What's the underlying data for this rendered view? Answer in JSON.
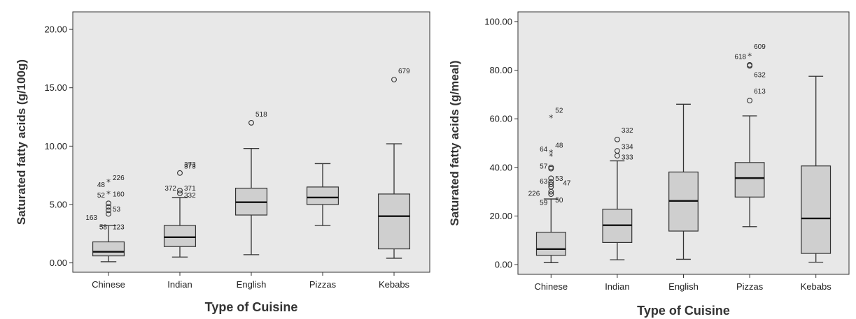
{
  "colors": {
    "plot_bg": "#e8e8e8",
    "box_fill": "#cfcfcf",
    "line": "#333333"
  },
  "chart_data": [
    {
      "type": "box",
      "xlabel": "Type of Cuisine",
      "ylabel": "Saturated fatty acids (g/100g)",
      "ylim": [
        -0.8,
        21.5
      ],
      "yticks": [
        0,
        5,
        10,
        15,
        20
      ],
      "ytick_labels": [
        "0.00",
        "5.00",
        "10.00",
        "15.00",
        "20.00"
      ],
      "grid": false,
      "categories": [
        "Chinese",
        "Indian",
        "English",
        "Pizzas",
        "Kebabs"
      ],
      "boxes": [
        {
          "min": 0.1,
          "q1": 0.6,
          "median": 0.95,
          "q3": 1.8,
          "max": 3.2
        },
        {
          "min": 0.5,
          "q1": 1.4,
          "median": 2.2,
          "q3": 3.2,
          "max": 5.6
        },
        {
          "min": 0.7,
          "q1": 4.1,
          "median": 5.2,
          "q3": 6.4,
          "max": 9.8
        },
        {
          "min": 3.2,
          "q1": 5.0,
          "median": 5.6,
          "q3": 6.5,
          "max": 8.5
        },
        {
          "min": 0.4,
          "q1": 1.2,
          "median": 4.0,
          "q3": 5.9,
          "max": 10.2
        }
      ],
      "outliers": [
        {
          "cat": 0,
          "y": 4.2,
          "mark": "circle",
          "label": ""
        },
        {
          "cat": 0,
          "y": 4.5,
          "mark": "circle",
          "label": ""
        },
        {
          "cat": 0,
          "y": 4.8,
          "mark": "circle",
          "label": ""
        },
        {
          "cat": 0,
          "y": 5.1,
          "mark": "circle",
          "label": ""
        },
        {
          "cat": 0,
          "y": 5.9,
          "mark": "star",
          "label": ""
        },
        {
          "cat": 0,
          "y": 6.9,
          "mark": "star",
          "label": ""
        }
      ],
      "point_labels": [
        {
          "cat": 0,
          "y": 7.3,
          "side": "right",
          "text": "226"
        },
        {
          "cat": 0,
          "y": 6.7,
          "side": "left",
          "text": "48"
        },
        {
          "cat": 0,
          "y": 5.8,
          "side": "left",
          "text": "52"
        },
        {
          "cat": 0,
          "y": 5.9,
          "side": "right",
          "text": "160"
        },
        {
          "cat": 0,
          "y": 4.6,
          "side": "right",
          "text": "53"
        },
        {
          "cat": 0,
          "y": 3.9,
          "side": "far-left",
          "text": "163"
        },
        {
          "cat": 0,
          "y": 3.1,
          "side": "mid-left",
          "text": "58"
        },
        {
          "cat": 0,
          "y": 3.1,
          "side": "right",
          "text": "123"
        },
        {
          "cat": 1,
          "y": 7.7,
          "mark": "circle",
          "label": "373"
        },
        {
          "cat": 1,
          "y": 6.2,
          "mark": "circle",
          "label": ""
        },
        {
          "cat": 1,
          "y": 5.95,
          "mark": "circle",
          "label": ""
        }
      ],
      "extra_labels": [
        {
          "cat": 1,
          "y": 8.3,
          "side": "right",
          "text": "373"
        },
        {
          "cat": 1,
          "y": 6.4,
          "side": "left",
          "text": "372"
        },
        {
          "cat": 1,
          "y": 6.4,
          "side": "right",
          "text": "371"
        },
        {
          "cat": 1,
          "y": 5.8,
          "side": "right",
          "text": "332"
        },
        {
          "cat": 2,
          "y": 12.0,
          "mark": "circle",
          "text": "518"
        },
        {
          "cat": 4,
          "y": 15.7,
          "mark": "circle",
          "text": "679"
        }
      ]
    },
    {
      "type": "box",
      "xlabel": "Type of Cuisine",
      "ylabel": "Saturated fatty acids (g/meal)",
      "ylim": [
        -4,
        104
      ],
      "yticks": [
        0,
        20,
        40,
        60,
        80,
        100
      ],
      "ytick_labels": [
        "0.00",
        "20.00",
        "40.00",
        "60.00",
        "80.00",
        "100.00"
      ],
      "grid": false,
      "categories": [
        "Chinese",
        "Indian",
        "English",
        "Pizzas",
        "Kebabs"
      ],
      "boxes": [
        {
          "min": 0.8,
          "q1": 3.8,
          "median": 6.4,
          "q3": 13.3,
          "max": 27.0
        },
        {
          "min": 2.0,
          "q1": 9.1,
          "median": 16.2,
          "q3": 22.8,
          "max": 42.7
        },
        {
          "min": 2.2,
          "q1": 13.8,
          "median": 26.2,
          "q3": 38.1,
          "max": 66.0
        },
        {
          "min": 15.6,
          "q1": 27.8,
          "median": 35.6,
          "q3": 42.0,
          "max": 61.2
        },
        {
          "min": 1.0,
          "q1": 4.6,
          "median": 19.0,
          "q3": 40.6,
          "max": 77.5
        }
      ],
      "outliers": [
        {
          "cat": 0,
          "y": 29.0,
          "mark": "circle"
        },
        {
          "cat": 0,
          "y": 30.0,
          "mark": "circle"
        },
        {
          "cat": 0,
          "y": 32.0,
          "mark": "circle"
        },
        {
          "cat": 0,
          "y": 33.0,
          "mark": "circle"
        },
        {
          "cat": 0,
          "y": 34.0,
          "mark": "circle"
        },
        {
          "cat": 0,
          "y": 35.5,
          "mark": "circle"
        },
        {
          "cat": 0,
          "y": 39.5,
          "mark": "circle"
        },
        {
          "cat": 0,
          "y": 40.0,
          "mark": "circle"
        },
        {
          "cat": 0,
          "y": 44.5,
          "mark": "star"
        },
        {
          "cat": 0,
          "y": 46.0,
          "mark": "star"
        },
        {
          "cat": 0,
          "y": 60.3,
          "mark": "star"
        },
        {
          "cat": 1,
          "y": 44.8,
          "mark": "circle"
        },
        {
          "cat": 1,
          "y": 46.8,
          "mark": "circle"
        },
        {
          "cat": 1,
          "y": 51.5,
          "mark": "circle"
        },
        {
          "cat": 2,
          "y": 0,
          "mark": "none"
        },
        {
          "cat": 3,
          "y": 67.5,
          "mark": "circle"
        },
        {
          "cat": 3,
          "y": 81.8,
          "mark": "circle"
        },
        {
          "cat": 3,
          "y": 82.2,
          "mark": "circle"
        },
        {
          "cat": 3,
          "y": 85.8,
          "mark": "star"
        }
      ],
      "point_labels": [
        {
          "cat": 0,
          "y": 63.5,
          "side": "right",
          "text": "52"
        },
        {
          "cat": 0,
          "y": 49.2,
          "side": "right",
          "text": "48"
        },
        {
          "cat": 0,
          "y": 47.5,
          "side": "left",
          "text": "64"
        },
        {
          "cat": 0,
          "y": 40.5,
          "side": "left",
          "text": "57"
        },
        {
          "cat": 0,
          "y": 34.4,
          "side": "left",
          "text": "63"
        },
        {
          "cat": 0,
          "y": 35.5,
          "side": "right",
          "text": "53"
        },
        {
          "cat": 0,
          "y": 33.6,
          "side": "far-right",
          "text": "47"
        },
        {
          "cat": 0,
          "y": 29.3,
          "side": "far-left",
          "text": "226"
        },
        {
          "cat": 0,
          "y": 25.6,
          "side": "left",
          "text": "59"
        },
        {
          "cat": 0,
          "y": 26.6,
          "side": "right",
          "text": "50"
        },
        {
          "cat": 1,
          "y": 55.3,
          "side": "right",
          "text": "332"
        },
        {
          "cat": 1,
          "y": 48.6,
          "side": "right",
          "text": "334"
        },
        {
          "cat": 1,
          "y": 44.3,
          "side": "right",
          "text": "333"
        },
        {
          "cat": 3,
          "y": 89.8,
          "side": "right",
          "text": "609"
        },
        {
          "cat": 3,
          "y": 85.6,
          "side": "left",
          "text": "618"
        },
        {
          "cat": 3,
          "y": 78.1,
          "side": "right",
          "text": "632"
        },
        {
          "cat": 3,
          "y": 71.4,
          "side": "right",
          "text": "613"
        }
      ]
    }
  ]
}
